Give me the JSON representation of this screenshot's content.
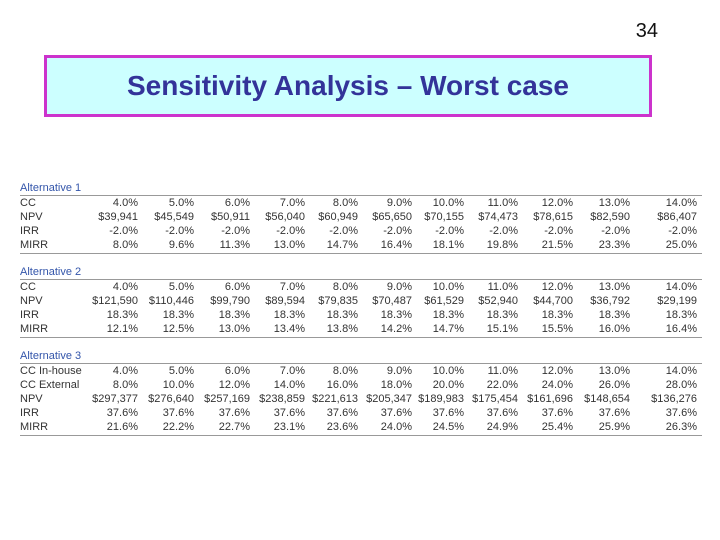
{
  "slide_number": "34",
  "title": "Sensitivity Analysis – Worst case",
  "sections": [
    {
      "heading": "Alternative 1",
      "rows": [
        {
          "label": "CC",
          "cells": [
            "4.0%",
            "5.0%",
            "6.0%",
            "7.0%",
            "8.0%",
            "9.0%",
            "10.0%",
            "11.0%",
            "12.0%",
            "13.0%",
            "14.0%"
          ]
        },
        {
          "label": "NPV",
          "cells": [
            "$39,941",
            "$45,549",
            "$50,911",
            "$56,040",
            "$60,949",
            "$65,650",
            "$70,155",
            "$74,473",
            "$78,615",
            "$82,590",
            "$86,407"
          ]
        },
        {
          "label": "IRR",
          "cells": [
            "-2.0%",
            "-2.0%",
            "-2.0%",
            "-2.0%",
            "-2.0%",
            "-2.0%",
            "-2.0%",
            "-2.0%",
            "-2.0%",
            "-2.0%",
            "-2.0%"
          ]
        },
        {
          "label": "MIRR",
          "cells": [
            "8.0%",
            "9.6%",
            "11.3%",
            "13.0%",
            "14.7%",
            "16.4%",
            "18.1%",
            "19.8%",
            "21.5%",
            "23.3%",
            "25.0%"
          ]
        }
      ]
    },
    {
      "heading": "Alternative 2",
      "rows": [
        {
          "label": "CC",
          "cells": [
            "4.0%",
            "5.0%",
            "6.0%",
            "7.0%",
            "8.0%",
            "9.0%",
            "10.0%",
            "11.0%",
            "12.0%",
            "13.0%",
            "14.0%"
          ]
        },
        {
          "label": "NPV",
          "cells": [
            "$121,590",
            "$110,446",
            "$99,790",
            "$89,594",
            "$79,835",
            "$70,487",
            "$61,529",
            "$52,940",
            "$44,700",
            "$36,792",
            "$29,199"
          ]
        },
        {
          "label": "IRR",
          "cells": [
            "18.3%",
            "18.3%",
            "18.3%",
            "18.3%",
            "18.3%",
            "18.3%",
            "18.3%",
            "18.3%",
            "18.3%",
            "18.3%",
            "18.3%"
          ]
        },
        {
          "label": "MIRR",
          "cells": [
            "12.1%",
            "12.5%",
            "13.0%",
            "13.4%",
            "13.8%",
            "14.2%",
            "14.7%",
            "15.1%",
            "15.5%",
            "16.0%",
            "16.4%"
          ]
        }
      ]
    },
    {
      "heading": "Alternative 3",
      "rows": [
        {
          "label": "CC In-house",
          "cells": [
            "4.0%",
            "5.0%",
            "6.0%",
            "7.0%",
            "8.0%",
            "9.0%",
            "10.0%",
            "11.0%",
            "12.0%",
            "13.0%",
            "14.0%"
          ]
        },
        {
          "label": "CC External",
          "cells": [
            "8.0%",
            "10.0%",
            "12.0%",
            "14.0%",
            "16.0%",
            "18.0%",
            "20.0%",
            "22.0%",
            "24.0%",
            "26.0%",
            "28.0%"
          ]
        },
        {
          "label": "NPV",
          "cells": [
            "$297,377",
            "$276,640",
            "$257,169",
            "$238,859",
            "$221,613",
            "$205,347",
            "$189,983",
            "$175,454",
            "$161,696",
            "$148,654",
            "$136,276"
          ]
        },
        {
          "label": "IRR",
          "cells": [
            "37.6%",
            "37.6%",
            "37.6%",
            "37.6%",
            "37.6%",
            "37.6%",
            "37.6%",
            "37.6%",
            "37.6%",
            "37.6%",
            "37.6%"
          ]
        },
        {
          "label": "MIRR",
          "cells": [
            "21.6%",
            "22.2%",
            "22.7%",
            "23.1%",
            "23.6%",
            "24.0%",
            "24.5%",
            "24.9%",
            "25.4%",
            "25.9%",
            "26.3%"
          ]
        }
      ]
    }
  ]
}
